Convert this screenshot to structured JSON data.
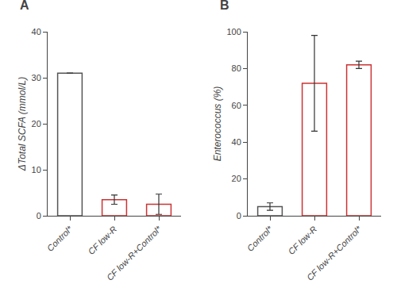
{
  "chart_data": [
    {
      "type": "bar",
      "title": "A",
      "categories": [
        "Control*",
        "CF low-R",
        "CF low-R+Control*"
      ],
      "values": [
        31.0,
        3.5,
        2.5
      ],
      "errors": [
        0.0,
        1.0,
        2.2
      ],
      "colors": [
        "#555555",
        "#cc3333",
        "#cc3333"
      ],
      "y_label": "ΔTotal SCFA (mmol/L)",
      "ylim": [
        0,
        40
      ],
      "yticks": [
        0,
        10,
        20,
        30,
        40
      ],
      "grid": false
    },
    {
      "type": "bar",
      "title": "B",
      "categories": [
        "Control*",
        "CF low-R",
        "CF low-R+Control*"
      ],
      "values": [
        5.0,
        72.0,
        82.0
      ],
      "errors": [
        2.0,
        26.0,
        2.0
      ],
      "colors": [
        "#555555",
        "#cc3333",
        "#cc3333"
      ],
      "y_label": "Enterococcus (%)",
      "ylim": [
        0,
        100
      ],
      "yticks": [
        0,
        20,
        40,
        60,
        80,
        100
      ],
      "grid": false
    }
  ]
}
